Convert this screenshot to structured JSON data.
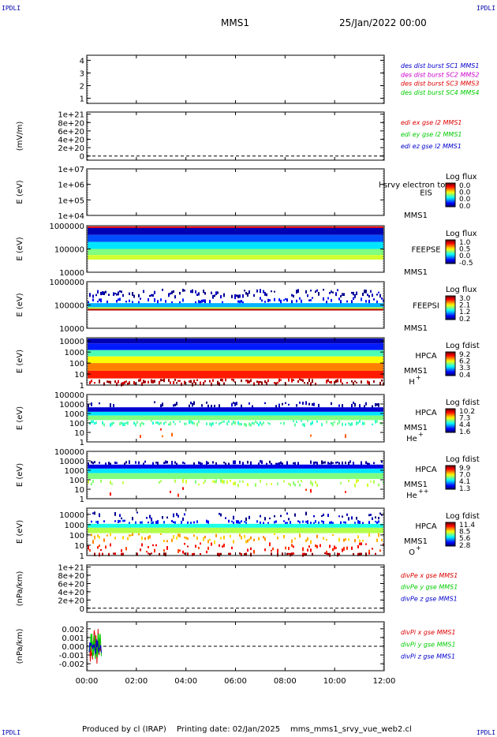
{
  "header": {
    "corner_tl": "IPDLI",
    "corner_tr": "IPDLI",
    "corner_bl": "IPDLI",
    "corner_br": "IPDLI",
    "spacecraft": "MMS1",
    "datetime": "25/Jan/2022 00:00"
  },
  "footer": {
    "produced": "Produced by cl (IRAP)",
    "printed": "Printing date: 02/Jan/2025",
    "script": "mms_mms1_srvy_vue_web2.cl"
  },
  "colors": {
    "blue": "#0000cc",
    "magenta": "#cc00cc",
    "red": "#dd0000",
    "green": "#00cc00"
  },
  "chart_data": [
    {
      "type": "line",
      "name": "des-burst",
      "yticks": [
        "4",
        "3",
        "2",
        "1"
      ],
      "ylim": [
        0.6,
        4.4
      ],
      "ylabel": "",
      "legend": [
        {
          "label": "des dist burst SC1 MMS1",
          "color": "#0000cc"
        },
        {
          "label": "des dist burst SC2 MMS2",
          "color": "#cc00cc"
        },
        {
          "label": "des dist burst SC3 MMS3",
          "color": "#dd0000"
        },
        {
          "label": "des dist burst SC4 MMS4",
          "color": "#00cc00"
        }
      ],
      "series": []
    },
    {
      "type": "line",
      "name": "edi-efield",
      "ylabel": "(mV/m)",
      "yticks": [
        "1e+21",
        "8e+20",
        "6e+20",
        "4e+20",
        "2e+20",
        "0"
      ],
      "ylim": [
        -1e+20,
        1.05e+21
      ],
      "legend": [
        {
          "label": "edi ex gse l2 MMS1",
          "color": "#dd0000"
        },
        {
          "label": "edi ey gse l2 MMS1",
          "color": "#00cc00"
        },
        {
          "label": "edi ez gse l2 MMS1",
          "color": "#0000cc"
        }
      ],
      "zero_line": true,
      "series": []
    },
    {
      "type": "heatmap",
      "name": "eis",
      "ylabel": "E (eV)",
      "yticks": [
        "1e+07",
        "1e+06",
        "1e+05",
        "1e+04"
      ],
      "ylog": true,
      "ylim": [
        10000,
        10000000
      ],
      "instrument": "EIS",
      "overlay_text": "l srvy electron to",
      "sc_label": "MMS1",
      "colorbar": {
        "title": "Log flux",
        "ticks": [
          "0.0",
          "0.0",
          "0.0",
          "0.0"
        ]
      },
      "bands": []
    },
    {
      "type": "heatmap",
      "name": "feeps-electron",
      "ylabel": "E (eV)",
      "yticks": [
        "1000000",
        "100000",
        "10000"
      ],
      "ylog": true,
      "ylim": [
        10000,
        1000000
      ],
      "instrument": "FEEPSE",
      "sc_label": "MMS1",
      "colorbar": {
        "title": "Log flux",
        "ticks": [
          "1.0",
          "0.5",
          "0.0",
          "-0.5"
        ]
      },
      "bands": [
        {
          "emin": 800000,
          "emax": 1000000,
          "level": 0.88
        },
        {
          "emin": 400000,
          "emax": 800000,
          "level": 0.05
        },
        {
          "emin": 200000,
          "emax": 400000,
          "level": 0.2
        },
        {
          "emin": 100000,
          "emax": 200000,
          "level": 0.35
        },
        {
          "emin": 55000,
          "emax": 100000,
          "level": 0.5
        },
        {
          "emin": 35000,
          "emax": 55000,
          "level": 0.58
        }
      ]
    },
    {
      "type": "heatmap",
      "name": "feeps-ion",
      "ylabel": "E (eV)",
      "yticks": [
        "1000000",
        "100000",
        "10000"
      ],
      "ylog": true,
      "ylim": [
        10000,
        1000000
      ],
      "instrument": "FEEPSI",
      "sc_label": "MMS1",
      "colorbar": {
        "title": "Log flux",
        "ticks": [
          "3.0",
          "2.1",
          "1.2",
          "0.2"
        ]
      },
      "bands": [
        {
          "emin": 220000,
          "emax": 500000,
          "level": 0.03,
          "sparse": 0.55
        },
        {
          "emin": 120000,
          "emax": 220000,
          "level": 0.12,
          "sparse": 0.3
        },
        {
          "emin": 80000,
          "emax": 120000,
          "level": 0.3
        },
        {
          "emin": 68000,
          "emax": 80000,
          "level": 0.55
        },
        {
          "emin": 58000,
          "emax": 68000,
          "level": 0.95
        }
      ]
    },
    {
      "type": "heatmap",
      "name": "hpca-h",
      "ylabel": "E (eV)",
      "yticks": [
        "10000",
        "1000",
        "100",
        "10",
        "1"
      ],
      "ylog": true,
      "ylim": [
        1,
        20000
      ],
      "instrument": "HPCA",
      "sc_label": "MMS1",
      "species": "H",
      "species_sup": "+",
      "colorbar": {
        "title": "Log fdist",
        "ticks": [
          "9.2",
          "6.2",
          "3.3",
          "0.4"
        ]
      },
      "bands": [
        {
          "emin": 6000,
          "emax": 20000,
          "level": 0.05
        },
        {
          "emin": 1500,
          "emax": 6000,
          "level": 0.15
        },
        {
          "emin": 400,
          "emax": 1500,
          "level": 0.45
        },
        {
          "emin": 100,
          "emax": 400,
          "level": 0.62
        },
        {
          "emin": 20,
          "emax": 100,
          "level": 0.75
        },
        {
          "emin": 4,
          "emax": 20,
          "level": 0.85
        },
        {
          "emin": 1,
          "emax": 4,
          "level": 0.95,
          "sparse": 0.6
        }
      ]
    },
    {
      "type": "heatmap",
      "name": "hpca-he",
      "ylabel": "E (eV)",
      "yticks": [
        "100000",
        "10000",
        "1000",
        "100",
        "10",
        "1"
      ],
      "ylog": true,
      "ylim": [
        1,
        100000
      ],
      "instrument": "HPCA",
      "sc_label": "MMS1",
      "species": "He",
      "species_sup": "+",
      "colorbar": {
        "title": "Log fdist",
        "ticks": [
          "10.2",
          "7.3",
          "4.4",
          "1.6"
        ]
      },
      "bands": [
        {
          "emin": 5000,
          "emax": 20000,
          "level": 0.03,
          "sparse": 0.25
        },
        {
          "emin": 1500,
          "emax": 4500,
          "level": 0.08
        },
        {
          "emin": 600,
          "emax": 1500,
          "level": 0.35
        },
        {
          "emin": 200,
          "emax": 600,
          "level": 0.5
        },
        {
          "emin": 60,
          "emax": 200,
          "level": 0.45,
          "sparse": 0.6
        },
        {
          "emin": 3,
          "emax": 60,
          "level": 0.8,
          "sparse": 0.05
        }
      ]
    },
    {
      "type": "heatmap",
      "name": "hpca-he2",
      "ylabel": "E (eV)",
      "yticks": [
        "100000",
        "10000",
        "1000",
        "100",
        "10",
        "1"
      ],
      "ylog": true,
      "ylim": [
        1,
        100000
      ],
      "instrument": "HPCA",
      "sc_label": "MMS1",
      "species": "He",
      "species_sup": "++",
      "colorbar": {
        "title": "Log fdist",
        "ticks": [
          "9.9",
          "7.0",
          "4.1",
          "1.3"
        ]
      },
      "bands": [
        {
          "emin": 4000,
          "emax": 12000,
          "level": 0.03,
          "sparse": 0.45
        },
        {
          "emin": 1500,
          "emax": 4000,
          "level": 0.1
        },
        {
          "emin": 500,
          "emax": 1500,
          "level": 0.35
        },
        {
          "emin": 120,
          "emax": 500,
          "level": 0.5
        },
        {
          "emin": 25,
          "emax": 120,
          "level": 0.55,
          "sparse": 0.25
        },
        {
          "emin": 1.5,
          "emax": 20,
          "level": 0.85,
          "sparse": 0.05
        }
      ]
    },
    {
      "type": "heatmap",
      "name": "hpca-o",
      "ylabel": "E (eV)",
      "yticks": [
        "10000",
        "1000",
        "100",
        "10",
        "1"
      ],
      "ylog": true,
      "ylim": [
        1,
        40000
      ],
      "instrument": "HPCA",
      "sc_label": "MMS1",
      "species": "O",
      "species_sup": "+",
      "colorbar": {
        "title": "Log fdist",
        "ticks": [
          "11.4",
          "8.5",
          "5.6",
          "2.8"
        ]
      },
      "bands": [
        {
          "emin": 3000,
          "emax": 20000,
          "level": 0.03,
          "sparse": 0.25
        },
        {
          "emin": 1200,
          "emax": 3000,
          "level": 0.15,
          "sparse": 0.35
        },
        {
          "emin": 500,
          "emax": 1200,
          "level": 0.4
        },
        {
          "emin": 150,
          "emax": 500,
          "level": 0.55
        },
        {
          "emin": 20,
          "emax": 150,
          "level": 0.7,
          "sparse": 0.4
        },
        {
          "emin": 2,
          "emax": 20,
          "level": 0.85,
          "sparse": 0.35
        },
        {
          "emin": 1,
          "emax": 2,
          "level": 0.95,
          "sparse": 0.3
        }
      ]
    },
    {
      "type": "line",
      "name": "divpe",
      "ylabel": "(nPa/km)",
      "yticks": [
        "1e+21",
        "8e+20",
        "6e+20",
        "4e+20",
        "2e+20",
        "0"
      ],
      "ylim": [
        -1e+20,
        1.05e+21
      ],
      "legend": [
        {
          "label": "divPe x gse MMS1",
          "color": "#dd0000"
        },
        {
          "label": "divPe y gse MMS1",
          "color": "#00cc00"
        },
        {
          "label": "divPe z gse MMS1",
          "color": "#0000cc"
        }
      ],
      "zero_line": true,
      "series": []
    },
    {
      "type": "line",
      "name": "divpi",
      "ylabel": "(nPa/km)",
      "yticks": [
        "0.002",
        "0.001",
        "0.000",
        "-0.001",
        "-0.002"
      ],
      "ylim": [
        -0.0028,
        0.0028
      ],
      "legend": [
        {
          "label": "divPi x gse MMS1",
          "color": "#dd0000"
        },
        {
          "label": "divPi y gse MMS1",
          "color": "#00cc00"
        },
        {
          "label": "divPi z gse MMS1",
          "color": "#0000cc"
        }
      ],
      "zero_line": true,
      "burst": {
        "t_start": 0.1,
        "t_end": 0.6,
        "amp_x": 0.0023,
        "amp_y": 0.0015,
        "amp_z": 0.0009
      }
    }
  ],
  "time_axis": {
    "unit": "hours",
    "range": [
      0,
      12
    ],
    "ticks": [
      "00:00",
      "02:00",
      "04:00",
      "06:00",
      "08:00",
      "10:00",
      "12:00"
    ]
  }
}
